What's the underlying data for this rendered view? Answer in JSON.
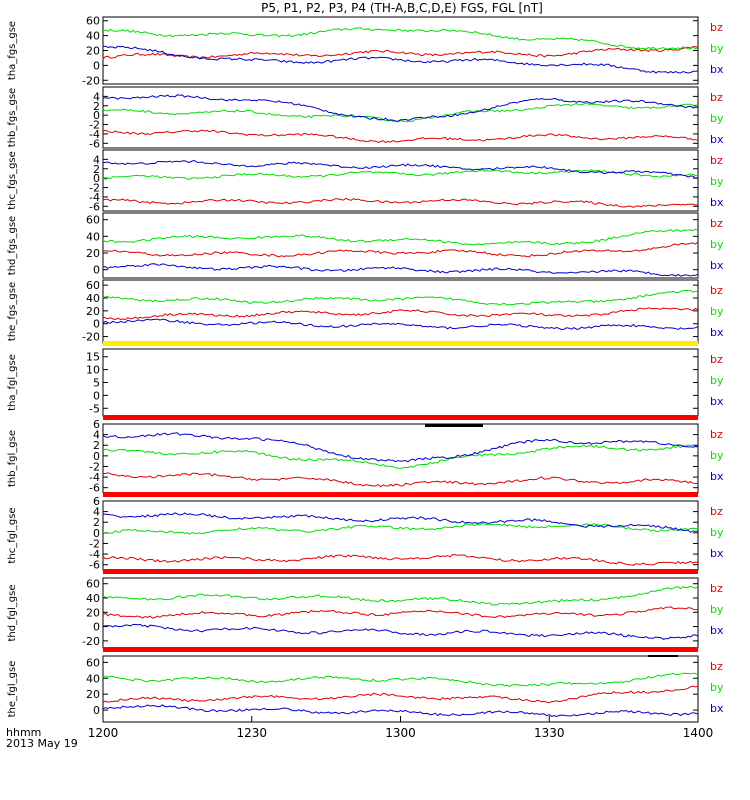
{
  "title": "P5, P1, P2, P3, P4 (TH-A,B,C,D,E) FGS, FGL [nT]",
  "footer": {
    "label": "hhmm",
    "date": "2013 May 19"
  },
  "colors": {
    "bx": "#0000cc",
    "by": "#00dd00",
    "bz": "#dd0000",
    "bar_red": "#ff0000",
    "bar_yellow": "#ffee00",
    "bar_black": "#000000"
  },
  "chart_data": {
    "type": "line",
    "x_ticks": [
      "1200",
      "1230",
      "1300",
      "1330",
      "1400"
    ],
    "x_range": [
      "1200",
      "1400"
    ],
    "legend": [
      "bz",
      "by",
      "bx"
    ],
    "panels": [
      {
        "ylabel": "tha_fgs_gse",
        "ylim": [
          -25,
          65
        ],
        "yticks": [
          "60",
          "40",
          "20",
          "0",
          "-20"
        ],
        "series": [
          {
            "name": "bz",
            "x": [
              "1200",
              "1230",
              "1300",
              "1330",
              "1400"
            ],
            "values": [
              12,
              14,
              17,
              15,
              25
            ]
          },
          {
            "name": "by",
            "x": [
              "1200",
              "1230",
              "1300",
              "1330",
              "1400"
            ],
            "values": [
              45,
              40,
              50,
              35,
              20
            ]
          },
          {
            "name": "bx",
            "x": [
              "1200",
              "1230",
              "1300",
              "1330",
              "1400"
            ],
            "values": [
              25,
              5,
              8,
              3,
              -10
            ]
          }
        ]
      },
      {
        "ylabel": "thb_fgs_gse",
        "ylim": [
          -7,
          6
        ],
        "yticks": [
          "4",
          "2",
          "0",
          "-2",
          "-4",
          "-6"
        ],
        "series": [
          {
            "name": "bz",
            "x": [
              "1200",
              "1230",
              "1300",
              "1330",
              "1400"
            ],
            "values": [
              -3.5,
              -3.8,
              -5.5,
              -4.5,
              -5
            ]
          },
          {
            "name": "by",
            "x": [
              "1200",
              "1230",
              "1300",
              "1330",
              "1400"
            ],
            "values": [
              0.8,
              0.5,
              -1,
              2,
              1.8
            ]
          },
          {
            "name": "bx",
            "x": [
              "1200",
              "1230",
              "1300",
              "1330",
              "1400"
            ],
            "values": [
              4,
              3.5,
              -1.5,
              3.5,
              2
            ]
          }
        ]
      },
      {
        "ylabel": "thc_fgs_gse",
        "ylim": [
          -7,
          6
        ],
        "yticks": [
          "4",
          "2",
          "0",
          "-2",
          "-4",
          "-6"
        ],
        "series": [
          {
            "name": "bz",
            "x": [
              "1200",
              "1230",
              "1300",
              "1330",
              "1400"
            ],
            "values": [
              -5,
              -5,
              -4.8,
              -5.2,
              -6
            ]
          },
          {
            "name": "by",
            "x": [
              "1200",
              "1230",
              "1300",
              "1330",
              "1400"
            ],
            "values": [
              0,
              0.5,
              1,
              1.5,
              0.5
            ]
          },
          {
            "name": "bx",
            "x": [
              "1200",
              "1230",
              "1300",
              "1330",
              "1400"
            ],
            "values": [
              3.5,
              3,
              2.5,
              2,
              0.5
            ]
          }
        ]
      },
      {
        "ylabel": "thd_fgs_gse",
        "ylim": [
          -10,
          68
        ],
        "yticks": [
          "60",
          "40",
          "20",
          "0"
        ],
        "series": [
          {
            "name": "bz",
            "x": [
              "1200",
              "1230",
              "1300",
              "1330",
              "1400"
            ],
            "values": [
              20,
              18,
              22,
              18,
              30
            ]
          },
          {
            "name": "by",
            "x": [
              "1200",
              "1230",
              "1300",
              "1330",
              "1400"
            ],
            "values": [
              35,
              40,
              35,
              30,
              50
            ]
          },
          {
            "name": "bx",
            "x": [
              "1200",
              "1230",
              "1300",
              "1330",
              "1400"
            ],
            "values": [
              5,
              2,
              0,
              -2,
              -5
            ]
          }
        ]
      },
      {
        "ylabel": "the_fgs_gse",
        "ylim": [
          -30,
          68
        ],
        "yticks": [
          "60",
          "40",
          "20",
          "0",
          "-20"
        ],
        "series": [
          {
            "name": "bz",
            "x": [
              "1200",
              "1230",
              "1300",
              "1330",
              "1400"
            ],
            "values": [
              10,
              15,
              18,
              12,
              25
            ]
          },
          {
            "name": "by",
            "x": [
              "1200",
              "1230",
              "1300",
              "1330",
              "1400"
            ],
            "values": [
              40,
              35,
              40,
              30,
              50
            ]
          },
          {
            "name": "bx",
            "x": [
              "1200",
              "1230",
              "1300",
              "1330",
              "1400"
            ],
            "values": [
              5,
              0,
              -3,
              -5,
              -5
            ]
          }
        ]
      },
      {
        "ylabel": "tha_fgl_gse",
        "ylim": [
          -8,
          18
        ],
        "yticks": [
          "15",
          "10",
          "5",
          "0",
          "-5"
        ],
        "series": []
      },
      {
        "ylabel": "thb_fgl_gse",
        "ylim": [
          -7,
          6
        ],
        "yticks": [
          "6",
          "4",
          "2",
          "0",
          "-2",
          "-4",
          "-6"
        ],
        "series": [
          {
            "name": "bz",
            "x": [
              "1200",
              "1230",
              "1300",
              "1330",
              "1400"
            ],
            "values": [
              -3.5,
              -4,
              -5.5,
              -4.5,
              -5
            ]
          },
          {
            "name": "by",
            "x": [
              "1200",
              "1230",
              "1300",
              "1330",
              "1400"
            ],
            "values": [
              0.8,
              0.5,
              -2,
              1.5,
              1.5
            ]
          },
          {
            "name": "bx",
            "x": [
              "1200",
              "1230",
              "1300",
              "1330",
              "1400"
            ],
            "values": [
              4,
              3.5,
              -1.5,
              3,
              2
            ]
          }
        ]
      },
      {
        "ylabel": "thc_fgl_gse",
        "ylim": [
          -7,
          6
        ],
        "yticks": [
          "6",
          "4",
          "2",
          "0",
          "-2",
          "-4",
          "-6"
        ],
        "series": [
          {
            "name": "bz",
            "x": [
              "1200",
              "1230",
              "1300",
              "1330",
              "1400"
            ],
            "values": [
              -5,
              -5,
              -4.5,
              -5,
              -6
            ]
          },
          {
            "name": "by",
            "x": [
              "1200",
              "1230",
              "1300",
              "1330",
              "1400"
            ],
            "values": [
              0,
              0.5,
              1,
              1.5,
              0.5
            ]
          },
          {
            "name": "bx",
            "x": [
              "1200",
              "1230",
              "1300",
              "1330",
              "1400"
            ],
            "values": [
              3.5,
              3,
              2.5,
              2,
              0.5
            ]
          }
        ]
      },
      {
        "ylabel": "thd_fgl_gse",
        "ylim": [
          -30,
          68
        ],
        "yticks": [
          "60",
          "40",
          "20",
          "0",
          "-20"
        ],
        "series": [
          {
            "name": "bz",
            "x": [
              "1200",
              "1230",
              "1300",
              "1330",
              "1400"
            ],
            "values": [
              15,
              18,
              20,
              15,
              25
            ]
          },
          {
            "name": "by",
            "x": [
              "1200",
              "1230",
              "1300",
              "1330",
              "1400"
            ],
            "values": [
              40,
              42,
              38,
              32,
              55
            ]
          },
          {
            "name": "bx",
            "x": [
              "1200",
              "1230",
              "1300",
              "1330",
              "1400"
            ],
            "values": [
              0,
              -5,
              -8,
              -10,
              -15
            ]
          }
        ]
      },
      {
        "ylabel": "the_fgl_gse",
        "ylim": [
          -15,
          68
        ],
        "yticks": [
          "60",
          "40",
          "20",
          "0"
        ],
        "series": [
          {
            "name": "bz",
            "x": [
              "1200",
              "1230",
              "1300",
              "1330",
              "1400"
            ],
            "values": [
              12,
              15,
              18,
              12,
              30
            ]
          },
          {
            "name": "by",
            "x": [
              "1200",
              "1230",
              "1300",
              "1330",
              "1400"
            ],
            "values": [
              40,
              38,
              40,
              30,
              45
            ]
          },
          {
            "name": "bx",
            "x": [
              "1200",
              "1230",
              "1300",
              "1330",
              "1400"
            ],
            "values": [
              5,
              0,
              -3,
              -5,
              -3
            ]
          }
        ]
      }
    ]
  }
}
